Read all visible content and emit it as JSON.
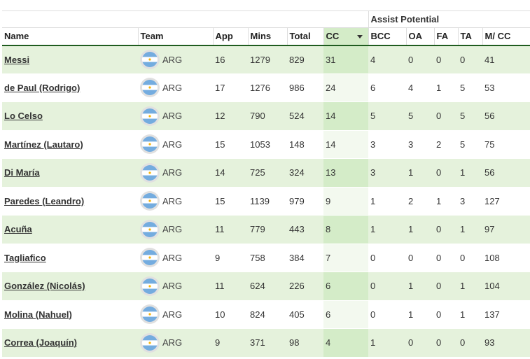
{
  "group_header": "Assist Potential",
  "columns": [
    "Name",
    "Team",
    "App",
    "Mins",
    "Total",
    "CC",
    "BCC",
    "OA",
    "FA",
    "TA",
    "M/ CC"
  ],
  "sorted_column": "CC",
  "rows": [
    {
      "name": "Messi",
      "team": "ARG",
      "app": "16",
      "mins": "1279",
      "total": "829",
      "cc": "31",
      "bcc": "4",
      "oa": "0",
      "fa": "0",
      "ta": "0",
      "mcc": "41"
    },
    {
      "name": "de Paul (Rodrigo)",
      "team": "ARG",
      "app": "17",
      "mins": "1276",
      "total": "986",
      "cc": "24",
      "bcc": "6",
      "oa": "4",
      "fa": "1",
      "ta": "5",
      "mcc": "53"
    },
    {
      "name": "Lo Celso",
      "team": "ARG",
      "app": "12",
      "mins": "790",
      "total": "524",
      "cc": "14",
      "bcc": "5",
      "oa": "5",
      "fa": "0",
      "ta": "5",
      "mcc": "56"
    },
    {
      "name": "Martínez (Lautaro)",
      "team": "ARG",
      "app": "15",
      "mins": "1053",
      "total": "148",
      "cc": "14",
      "bcc": "3",
      "oa": "3",
      "fa": "2",
      "ta": "5",
      "mcc": "75"
    },
    {
      "name": "Di María",
      "team": "ARG",
      "app": "14",
      "mins": "725",
      "total": "324",
      "cc": "13",
      "bcc": "3",
      "oa": "1",
      "fa": "0",
      "ta": "1",
      "mcc": "56"
    },
    {
      "name": "Paredes (Leandro)",
      "team": "ARG",
      "app": "15",
      "mins": "1139",
      "total": "979",
      "cc": "9",
      "bcc": "1",
      "oa": "2",
      "fa": "1",
      "ta": "3",
      "mcc": "127"
    },
    {
      "name": "Acuña",
      "team": "ARG",
      "app": "11",
      "mins": "779",
      "total": "443",
      "cc": "8",
      "bcc": "1",
      "oa": "1",
      "fa": "0",
      "ta": "1",
      "mcc": "97"
    },
    {
      "name": "Tagliafico",
      "team": "ARG",
      "app": "9",
      "mins": "758",
      "total": "384",
      "cc": "7",
      "bcc": "0",
      "oa": "0",
      "fa": "0",
      "ta": "0",
      "mcc": "108"
    },
    {
      "name": "González (Nicolás)",
      "team": "ARG",
      "app": "11",
      "mins": "624",
      "total": "226",
      "cc": "6",
      "bcc": "0",
      "oa": "1",
      "fa": "0",
      "ta": "1",
      "mcc": "104"
    },
    {
      "name": "Molina (Nahuel)",
      "team": "ARG",
      "app": "10",
      "mins": "824",
      "total": "405",
      "cc": "6",
      "bcc": "0",
      "oa": "1",
      "fa": "0",
      "ta": "1",
      "mcc": "137"
    },
    {
      "name": "Correa (Joaquín)",
      "team": "ARG",
      "app": "9",
      "mins": "371",
      "total": "98",
      "cc": "4",
      "bcc": "1",
      "oa": "0",
      "fa": "0",
      "ta": "0",
      "mcc": "93"
    }
  ],
  "colors": {
    "row_stripe": "#e5f2dc",
    "sorted_column_bg": "#d4ecc8",
    "header_rule": "#1f5c1f",
    "flag_blue": "#74acdf",
    "flag_sun": "#f6b40e"
  },
  "icons": {
    "flag": "argentina-flag-icon",
    "sort": "sort-descending-icon"
  }
}
